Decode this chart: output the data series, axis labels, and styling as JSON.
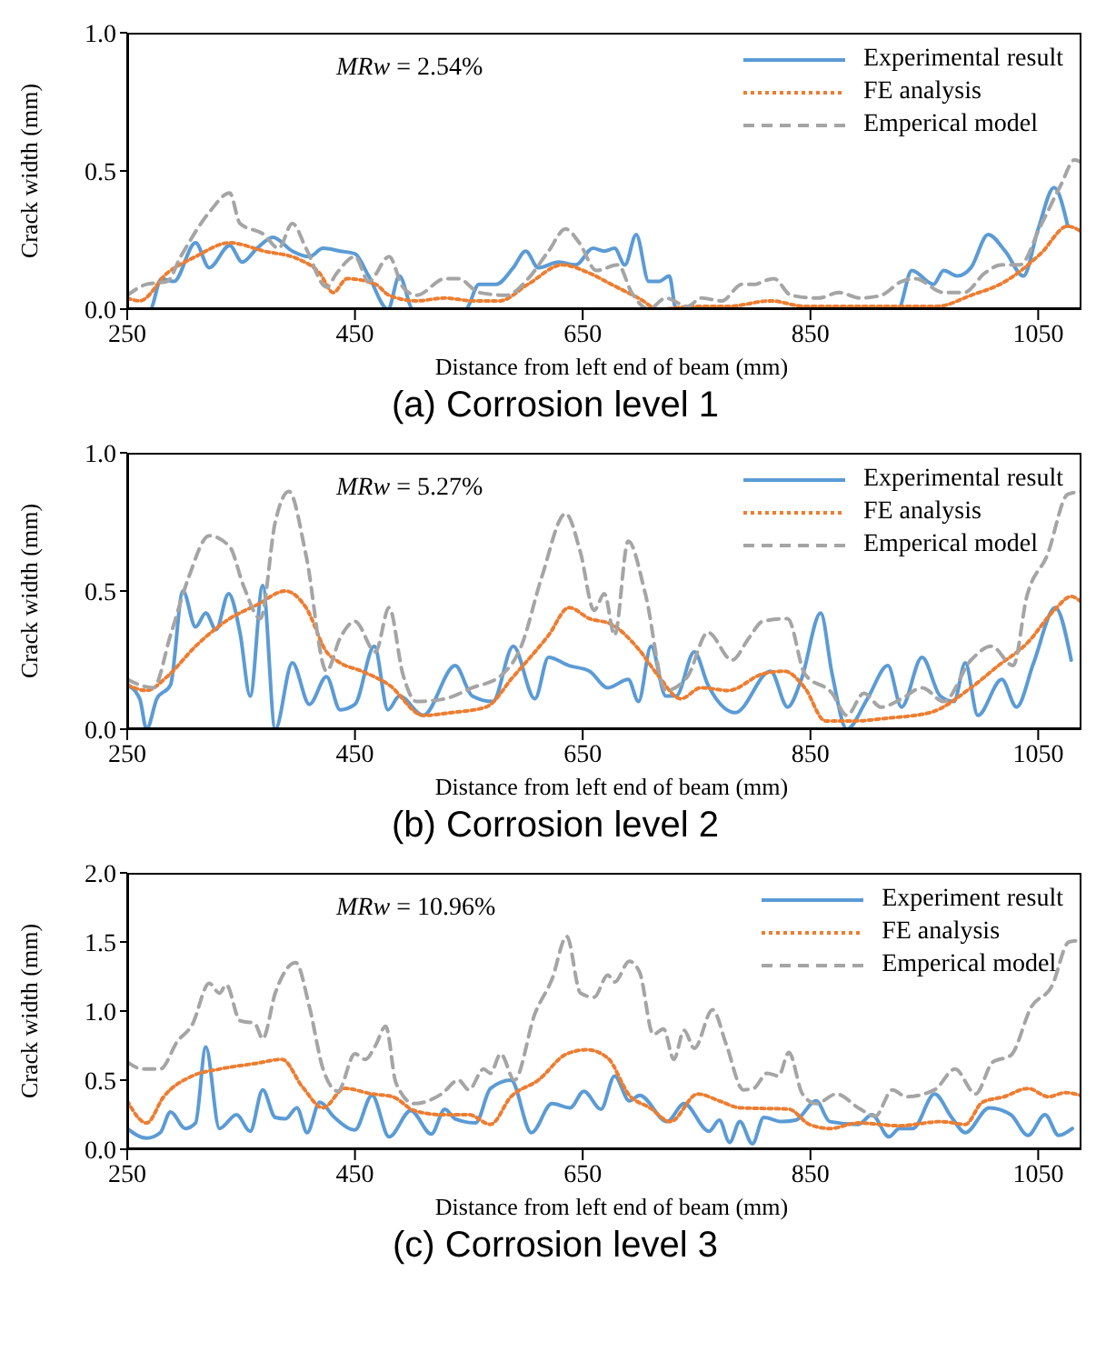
{
  "chart_data": [
    {
      "type": "line",
      "title": "(a) Corrosion level 1",
      "xlabel": "Distance from left end of beam (mm)",
      "ylabel": "Crack width (mm)",
      "annotations": [
        "MRw = 2.54%"
      ],
      "xlim": [
        250,
        1088
      ],
      "xticks": [
        250,
        450,
        650,
        850,
        1050
      ],
      "ylim": [
        0,
        1
      ],
      "yticks": [
        {
          "value": 0,
          "label": "0.0"
        },
        {
          "value": 0.5,
          "label": "0.5"
        },
        {
          "value": 1,
          "label": "1.0"
        }
      ],
      "grid": false,
      "legend": "top right",
      "marker": "none",
      "series": [
        {
          "name": "Experimental result",
          "color": "#5b9bd5",
          "line_style": "solid",
          "x": [
            250,
            270,
            280,
            291,
            310,
            322,
            340,
            351,
            364,
            378,
            395,
            410,
            422,
            437,
            450,
            462,
            479,
            489,
            501,
            547,
            559,
            574,
            589,
            600,
            611,
            629,
            644,
            659,
            669,
            678,
            687,
            697,
            708,
            717,
            726,
            732,
            927,
            939,
            958,
            967,
            979,
            991,
            1006,
            1021,
            1037,
            1050,
            1064,
            1076
          ],
          "values": [
            0,
            0,
            0.11,
            0.1,
            0.24,
            0.15,
            0.23,
            0.17,
            0.22,
            0.26,
            0.21,
            0.19,
            0.22,
            0.21,
            0.2,
            0.12,
            0,
            0.12,
            0,
            0,
            0.09,
            0.09,
            0.15,
            0.21,
            0.15,
            0.17,
            0.16,
            0.22,
            0.21,
            0.22,
            0.16,
            0.27,
            0.1,
            0.1,
            0.12,
            0,
            0,
            0.14,
            0.09,
            0.14,
            0.12,
            0.15,
            0.27,
            0.21,
            0.12,
            0.29,
            0.44,
            0.3
          ]
        },
        {
          "name": "FE analysis",
          "color": "#ed7d31",
          "line_style": "dotted",
          "x": [
            250,
            261,
            285,
            310,
            340,
            370,
            401,
            419,
            431,
            443,
            468,
            480,
            504,
            529,
            553,
            577,
            602,
            632,
            656,
            675,
            699,
            717,
            748,
            778,
            815,
            845,
            930,
            961,
            991,
            1021,
            1052,
            1076,
            1088
          ],
          "values": [
            0.04,
            0.03,
            0.13,
            0.19,
            0.24,
            0.21,
            0.18,
            0.13,
            0.06,
            0.11,
            0.09,
            0.05,
            0.03,
            0.04,
            0.03,
            0.03,
            0.09,
            0.16,
            0.13,
            0.09,
            0.04,
            0,
            0.01,
            0.01,
            0.03,
            0.01,
            0.01,
            0.01,
            0.05,
            0.1,
            0.2,
            0.3,
            0.28
          ]
        },
        {
          "name": "Emperical model",
          "color": "#a5a5a5",
          "line_style": "dashed",
          "x": [
            250,
            267,
            285,
            297,
            322,
            340,
            349,
            370,
            383,
            395,
            407,
            425,
            434,
            450,
            462,
            480,
            492,
            504,
            529,
            541,
            559,
            583,
            602,
            620,
            635,
            647,
            662,
            681,
            693,
            708,
            723,
            742,
            754,
            772,
            790,
            802,
            808,
            818,
            833,
            857,
            875,
            894,
            912,
            930,
            942,
            967,
            985,
            1003,
            1018,
            1034,
            1052,
            1070,
            1082,
            1088
          ],
          "values": [
            0.05,
            0.09,
            0.1,
            0.19,
            0.35,
            0.42,
            0.31,
            0.27,
            0.22,
            0.31,
            0.22,
            0.08,
            0.13,
            0.19,
            0.1,
            0.19,
            0.08,
            0.05,
            0.11,
            0.11,
            0.06,
            0.05,
            0.11,
            0.21,
            0.29,
            0.24,
            0.14,
            0.16,
            0.06,
            0,
            0.04,
            0.01,
            0.04,
            0.03,
            0.09,
            0.09,
            0.1,
            0.11,
            0.05,
            0.04,
            0.06,
            0.04,
            0.05,
            0.1,
            0.11,
            0.06,
            0.06,
            0.13,
            0.16,
            0.16,
            0.3,
            0.45,
            0.54,
            0.53
          ]
        }
      ]
    },
    {
      "type": "line",
      "title": "(b) Corrosion level 2",
      "xlabel": "Distance from left end of beam (mm)",
      "ylabel": "Crack width (mm)",
      "annotations": [
        "MRw = 5.27%"
      ],
      "xlim": [
        250,
        1088
      ],
      "xticks": [
        250,
        450,
        650,
        850,
        1050
      ],
      "ylim": [
        0,
        1
      ],
      "yticks": [
        {
          "value": 0,
          "label": "0.0"
        },
        {
          "value": 0.5,
          "label": "0.5"
        },
        {
          "value": 1,
          "label": "1.0"
        }
      ],
      "grid": false,
      "legend": "top right",
      "marker": "none",
      "series": [
        {
          "name": "Experimental result",
          "color": "#5b9bd5",
          "line_style": "solid",
          "x": [
            250,
            261,
            267,
            276,
            288,
            299,
            310,
            319,
            328,
            339,
            349,
            358,
            369,
            380,
            395,
            410,
            425,
            437,
            450,
            467,
            479,
            489,
            510,
            538,
            553,
            571,
            589,
            608,
            620,
            638,
            656,
            672,
            690,
            699,
            710,
            723,
            732,
            748,
            760,
            784,
            815,
            830,
            842,
            859,
            869,
            882,
            900,
            918,
            930,
            948,
            964,
            976,
            986,
            997,
            1018,
            1031,
            1046,
            1065,
            1079
          ],
          "values": [
            0.16,
            0.11,
            0,
            0.11,
            0.16,
            0.5,
            0.37,
            0.42,
            0.36,
            0.49,
            0.35,
            0.12,
            0.52,
            0,
            0.24,
            0.09,
            0.19,
            0.07,
            0.09,
            0.3,
            0.07,
            0.12,
            0.05,
            0.23,
            0.12,
            0.1,
            0.3,
            0.11,
            0.26,
            0.23,
            0.21,
            0.15,
            0.18,
            0.1,
            0.3,
            0.12,
            0.12,
            0.28,
            0.16,
            0.06,
            0.21,
            0.08,
            0.18,
            0.42,
            0.2,
            0,
            0.11,
            0.23,
            0.08,
            0.26,
            0.12,
            0.1,
            0.24,
            0.05,
            0.18,
            0.08,
            0.24,
            0.44,
            0.25
          ]
        },
        {
          "name": "FE analysis",
          "color": "#ed7d31",
          "line_style": "dotted",
          "x": [
            250,
            267,
            285,
            310,
            340,
            364,
            389,
            407,
            425,
            437,
            456,
            480,
            510,
            535,
            565,
            589,
            620,
            638,
            656,
            675,
            699,
            717,
            736,
            754,
            778,
            808,
            827,
            845,
            863,
            888,
            918,
            955,
            991,
            1015,
            1040,
            1064,
            1079,
            1088
          ],
          "values": [
            0.16,
            0.14,
            0.19,
            0.3,
            0.4,
            0.45,
            0.5,
            0.44,
            0.28,
            0.24,
            0.21,
            0.16,
            0.05,
            0.06,
            0.08,
            0.19,
            0.34,
            0.44,
            0.4,
            0.38,
            0.29,
            0.19,
            0.11,
            0.15,
            0.14,
            0.2,
            0.21,
            0.15,
            0.03,
            0.03,
            0.04,
            0.06,
            0.15,
            0.23,
            0.31,
            0.43,
            0.48,
            0.46
          ]
        },
        {
          "name": "Emperical model",
          "color": "#a5a5a5",
          "line_style": "dashed",
          "x": [
            250,
            273,
            288,
            304,
            322,
            340,
            352,
            367,
            380,
            392,
            407,
            425,
            437,
            450,
            468,
            480,
            492,
            504,
            529,
            553,
            577,
            596,
            614,
            635,
            648,
            660,
            669,
            678,
            690,
            705,
            723,
            742,
            760,
            781,
            796,
            808,
            830,
            845,
            869,
            882,
            897,
            912,
            930,
            948,
            967,
            991,
            1009,
            1028,
            1040,
            1058,
            1076,
            1088
          ],
          "values": [
            0.18,
            0.15,
            0.34,
            0.55,
            0.7,
            0.66,
            0.52,
            0.4,
            0.75,
            0.86,
            0.63,
            0.21,
            0.33,
            0.39,
            0.28,
            0.44,
            0.2,
            0.1,
            0.11,
            0.15,
            0.19,
            0.3,
            0.55,
            0.78,
            0.64,
            0.43,
            0.49,
            0.34,
            0.68,
            0.49,
            0.14,
            0.19,
            0.35,
            0.25,
            0.33,
            0.39,
            0.4,
            0.2,
            0.13,
            0.05,
            0.13,
            0.08,
            0.11,
            0.15,
            0.1,
            0.25,
            0.3,
            0.23,
            0.48,
            0.63,
            0.85,
            0.86
          ]
        }
      ]
    },
    {
      "type": "line",
      "title": "(c) Corrosion level 3",
      "xlabel": "Distance from left end of beam (mm)",
      "ylabel": "Crack width (mm)",
      "annotations": [
        "MRw = 10.96%"
      ],
      "xlim": [
        250,
        1088
      ],
      "xticks": [
        250,
        450,
        650,
        850,
        1050
      ],
      "ylim": [
        0,
        2
      ],
      "yticks": [
        {
          "value": 0,
          "label": "0.0"
        },
        {
          "value": 0.5,
          "label": "0.5"
        },
        {
          "value": 1,
          "label": "1.0"
        },
        {
          "value": 1.5,
          "label": "1.5"
        },
        {
          "value": 2,
          "label": "2.0"
        }
      ],
      "grid": false,
      "legend": "top right",
      "marker": "none",
      "series": [
        {
          "name": "Experiment result",
          "color": "#5b9bd5",
          "line_style": "solid",
          "x": [
            250,
            267,
            279,
            288,
            301,
            310,
            319,
            331,
            346,
            358,
            369,
            380,
            389,
            399,
            408,
            419,
            432,
            450,
            465,
            480,
            499,
            517,
            529,
            538,
            556,
            569,
            587,
            605,
            623,
            639,
            651,
            666,
            678,
            691,
            700,
            724,
            739,
            761,
            770,
            779,
            788,
            799,
            809,
            825,
            837,
            855,
            867,
            892,
            904,
            919,
            928,
            940,
            959,
            974,
            986,
            1007,
            1026,
            1041,
            1056,
            1068,
            1080
          ],
          "values": [
            0.15,
            0.08,
            0.12,
            0.27,
            0.15,
            0.19,
            0.74,
            0.15,
            0.25,
            0.13,
            0.43,
            0.23,
            0.22,
            0.3,
            0.12,
            0.34,
            0.23,
            0.14,
            0.39,
            0.09,
            0.28,
            0.11,
            0.29,
            0.22,
            0.19,
            0.44,
            0.5,
            0.12,
            0.33,
            0.3,
            0.42,
            0.29,
            0.53,
            0.35,
            0.39,
            0.2,
            0.33,
            0.13,
            0.21,
            0.05,
            0.2,
            0.04,
            0.23,
            0.2,
            0.21,
            0.35,
            0.2,
            0.18,
            0.25,
            0.09,
            0.15,
            0.15,
            0.4,
            0.23,
            0.12,
            0.3,
            0.25,
            0.1,
            0.25,
            0.1,
            0.15
          ]
        },
        {
          "name": "FE analysis",
          "color": "#ed7d31",
          "line_style": "dotted",
          "x": [
            250,
            267,
            282,
            307,
            331,
            362,
            386,
            404,
            422,
            441,
            465,
            483,
            502,
            526,
            550,
            569,
            587,
            611,
            636,
            654,
            672,
            691,
            709,
            727,
            751,
            770,
            788,
            831,
            849,
            867,
            892,
            928,
            965,
            986,
            1001,
            1020,
            1041,
            1059,
            1074,
            1087
          ],
          "values": [
            0.35,
            0.19,
            0.38,
            0.53,
            0.58,
            0.62,
            0.65,
            0.45,
            0.3,
            0.44,
            0.4,
            0.38,
            0.28,
            0.25,
            0.25,
            0.18,
            0.38,
            0.5,
            0.69,
            0.72,
            0.66,
            0.39,
            0.3,
            0.2,
            0.4,
            0.35,
            0.3,
            0.29,
            0.18,
            0.15,
            0.19,
            0.17,
            0.2,
            0.18,
            0.34,
            0.38,
            0.44,
            0.38,
            0.41,
            0.39
          ]
        },
        {
          "name": "Emperical model",
          "color": "#a5a5a5",
          "line_style": "dashed",
          "x": [
            250,
            264,
            279,
            294,
            307,
            322,
            331,
            337,
            349,
            362,
            369,
            380,
            398,
            410,
            422,
            435,
            450,
            459,
            468,
            477,
            486,
            502,
            526,
            541,
            550,
            563,
            569,
            578,
            590,
            608,
            623,
            636,
            648,
            660,
            672,
            678,
            691,
            700,
            712,
            721,
            730,
            739,
            748,
            764,
            776,
            791,
            800,
            812,
            822,
            831,
            843,
            855,
            873,
            892,
            907,
            922,
            934,
            959,
            977,
            995,
            1010,
            1026,
            1044,
            1062,
            1077,
            1087
          ],
          "values": [
            0.63,
            0.58,
            0.58,
            0.78,
            0.9,
            1.2,
            1.13,
            1.19,
            0.93,
            0.91,
            0.8,
            1.13,
            1.35,
            1.03,
            0.58,
            0.42,
            0.69,
            0.65,
            0.75,
            0.89,
            0.48,
            0.33,
            0.4,
            0.5,
            0.43,
            0.58,
            0.55,
            0.69,
            0.5,
            0.98,
            1.23,
            1.54,
            1.13,
            1.1,
            1.26,
            1.21,
            1.36,
            1.28,
            0.83,
            0.87,
            0.65,
            0.86,
            0.73,
            1.01,
            0.76,
            0.43,
            0.44,
            0.55,
            0.53,
            0.7,
            0.4,
            0.33,
            0.4,
            0.3,
            0.24,
            0.43,
            0.38,
            0.43,
            0.58,
            0.4,
            0.63,
            0.68,
            1.03,
            1.18,
            1.5,
            1.51
          ]
        }
      ]
    }
  ]
}
